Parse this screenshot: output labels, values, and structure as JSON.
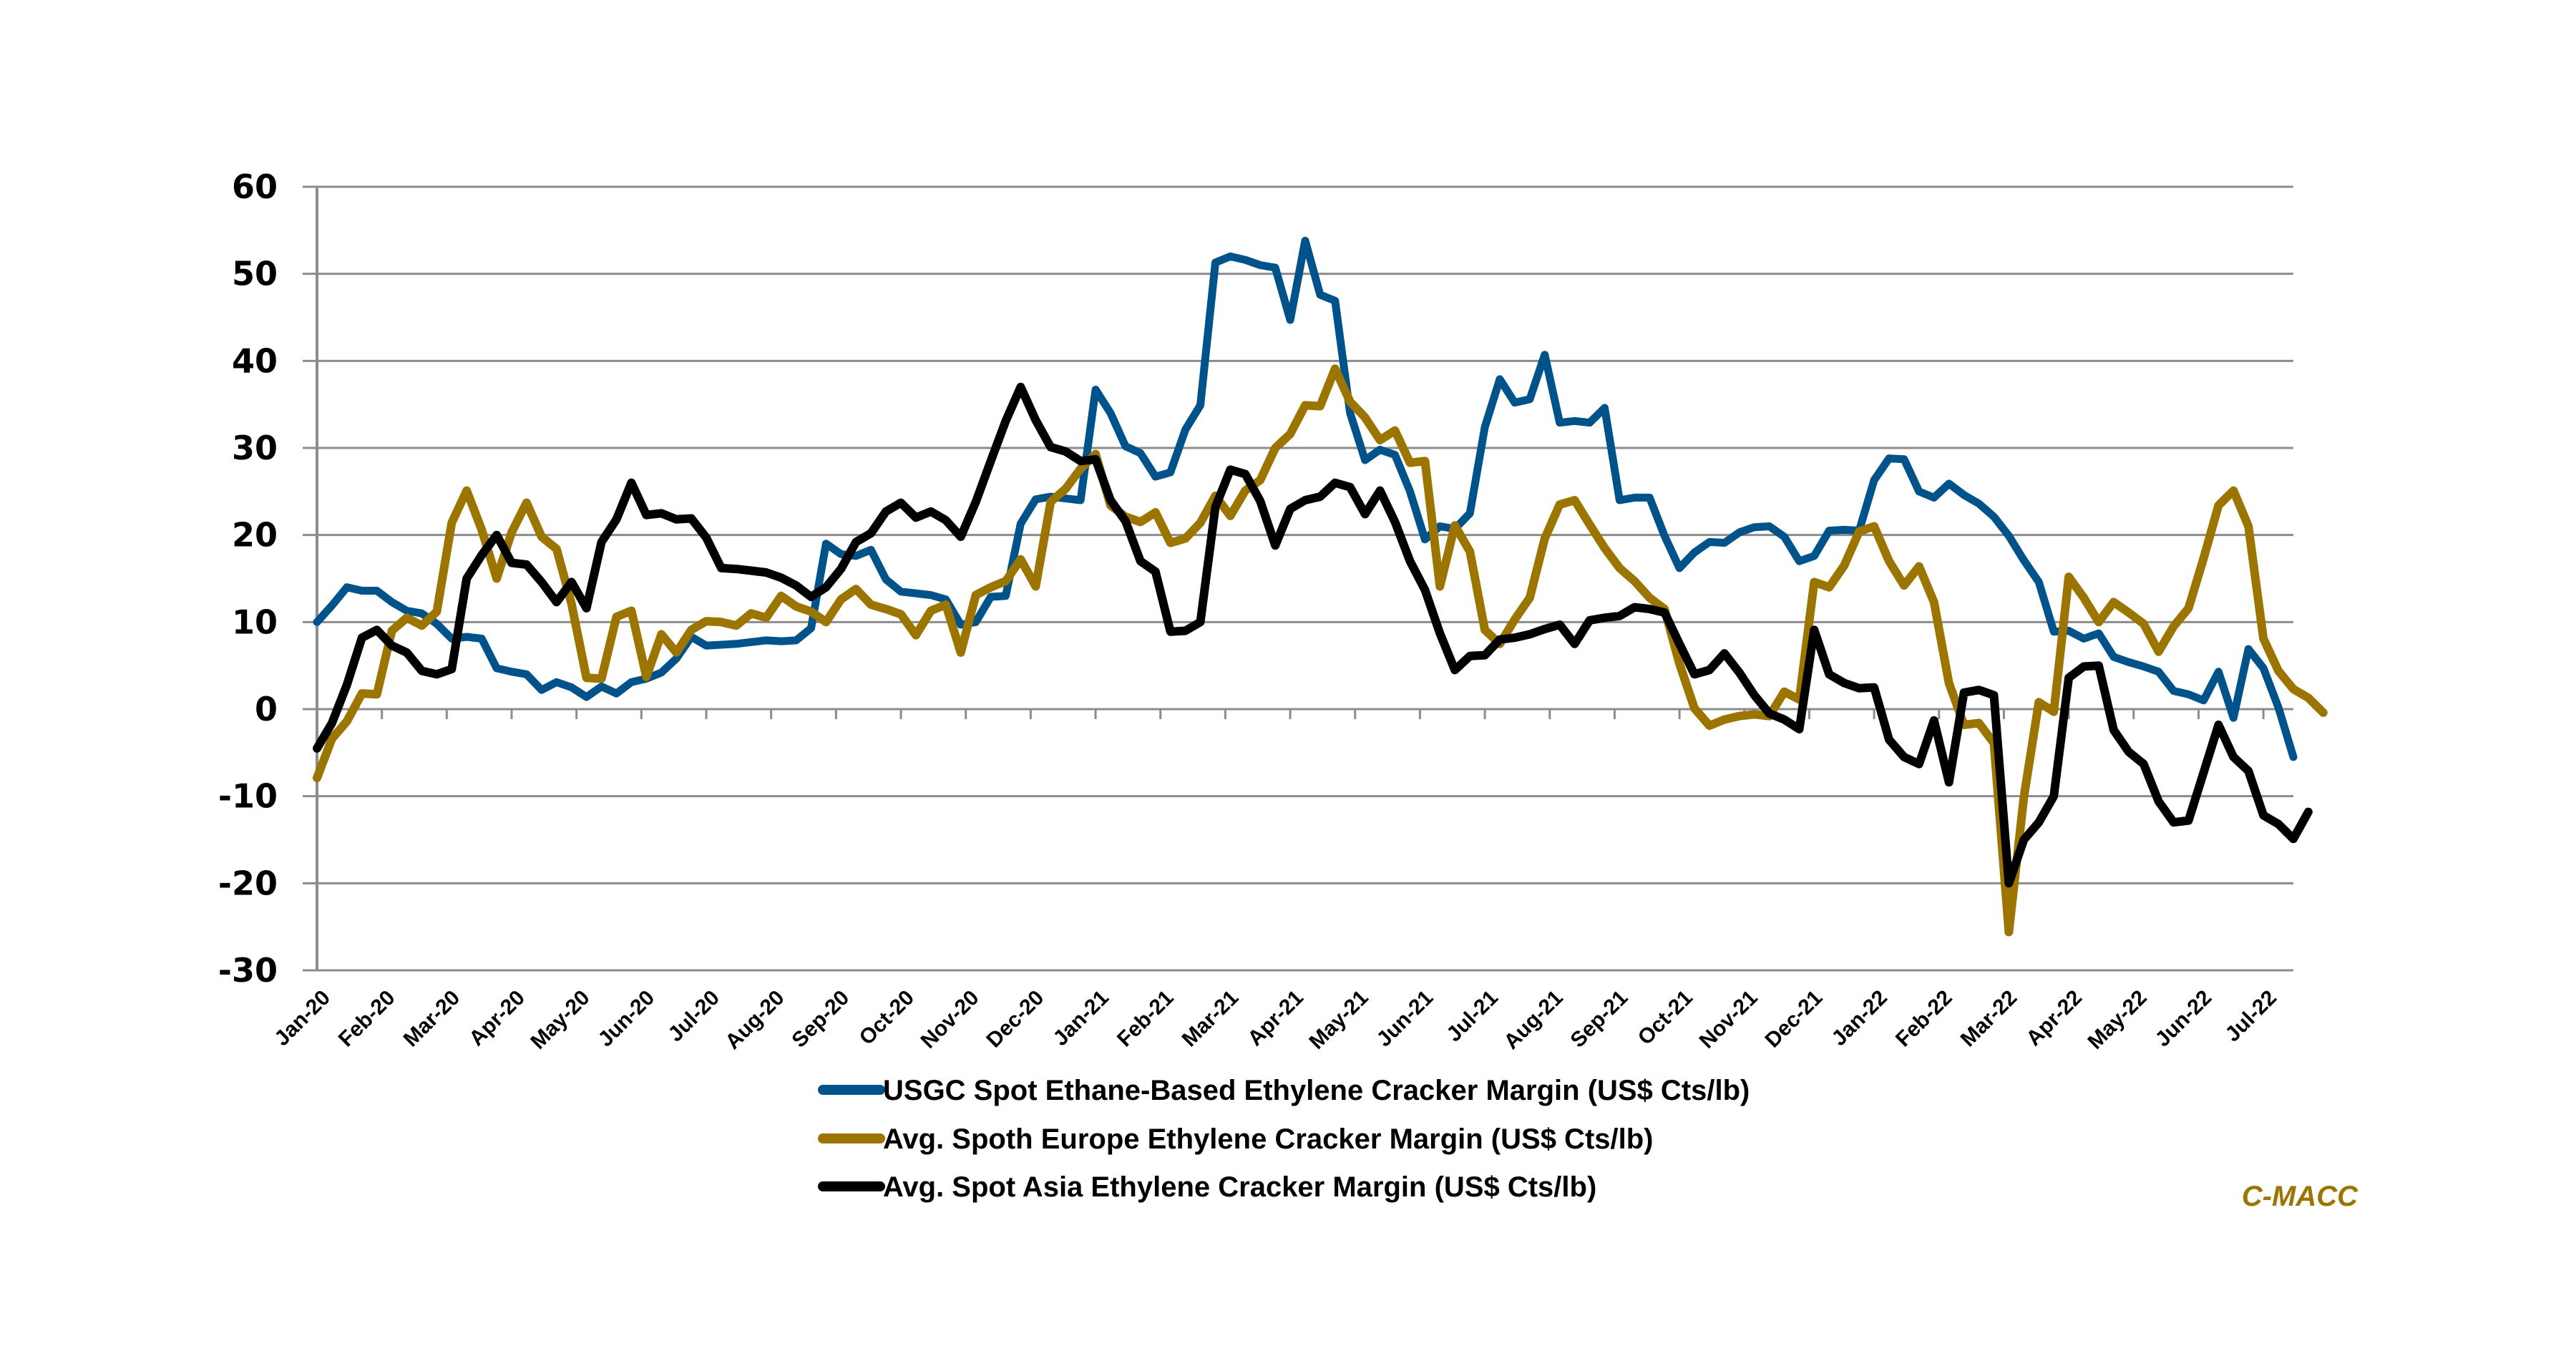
{
  "chart_data": {
    "type": "line",
    "title": "",
    "xlabel": "",
    "ylabel": "",
    "ylim": [
      -30,
      60
    ],
    "yticks": [
      60,
      50,
      40,
      30,
      20,
      10,
      0,
      -10,
      -20,
      -30
    ],
    "grid": true,
    "legend_position": "bottom-center",
    "x_frequency": "weekly",
    "x_tick_labels": [
      "Jan-20",
      "Feb-20",
      "Mar-20",
      "Apr-20",
      "May-20",
      "Jun-20",
      "Jul-20",
      "Aug-20",
      "Sep-20",
      "Oct-20",
      "Nov-20",
      "Dec-20",
      "Jan-21",
      "Feb-21",
      "Mar-21",
      "Apr-21",
      "May-21",
      "Jun-21",
      "Jul-21",
      "Aug-21",
      "Sep-21",
      "Oct-21",
      "Nov-21",
      "Dec-21",
      "Jan-22",
      "Feb-22",
      "Mar-22",
      "Apr-22",
      "May-22",
      "Jun-22",
      "Jul-22"
    ],
    "series": [
      {
        "name": "USGC Spot Ethane-Based Ethylene Cracker Margin (US$ Cts/lb)",
        "color": "#00538A",
        "values": [
          10.0,
          11.9,
          14.0,
          13.6,
          13.6,
          12.3,
          11.3,
          11.0,
          9.8,
          8.1,
          8.3,
          8.1,
          4.7,
          4.3,
          4.0,
          2.2,
          3.1,
          2.5,
          1.4,
          2.6,
          1.8,
          3.1,
          3.5,
          4.2,
          5.8,
          8.3,
          7.3,
          7.4,
          7.5,
          7.7,
          7.9,
          7.8,
          7.9,
          9.3,
          19.0,
          17.8,
          17.6,
          18.3,
          14.9,
          13.5,
          13.3,
          13.1,
          12.6,
          9.7,
          10.0,
          12.9,
          13.0,
          21.3,
          24.1,
          24.4,
          24.2,
          24.0,
          36.7,
          34.0,
          30.2,
          29.4,
          26.7,
          27.2,
          32.1,
          34.9,
          51.3,
          52.0,
          51.6,
          51.0,
          50.7,
          44.7,
          53.8,
          47.6,
          46.9,
          34.0,
          28.6,
          29.8,
          29.2,
          25.0,
          19.5,
          21.0,
          20.7,
          22.5,
          32.4,
          37.9,
          35.2,
          35.6,
          40.7,
          32.9,
          33.1,
          32.9,
          34.6,
          24.0,
          24.3,
          24.3,
          19.9,
          16.2,
          18.0,
          19.2,
          19.1,
          20.3,
          20.9,
          21.0,
          19.8,
          17.0,
          17.6,
          20.5,
          20.6,
          20.5,
          26.3,
          28.8,
          28.7,
          25.0,
          24.3,
          25.9,
          24.6,
          23.6,
          22.1,
          19.9,
          17.1,
          14.6,
          8.9,
          9.0,
          8.1,
          8.7,
          6.0,
          5.4,
          4.9,
          4.3,
          2.1,
          1.7,
          1.0,
          4.3,
          -1.0,
          6.9,
          4.7,
          0.2,
          -5.5
        ]
      },
      {
        "name": "Avg. Spoth Europe Ethylene Cracker Margin (US$ Cts/lb)",
        "color": "#9C7400",
        "values": [
          -7.9,
          -3.4,
          -1.4,
          1.8,
          1.7,
          9.0,
          10.5,
          9.6,
          11.2,
          21.4,
          25.1,
          20.6,
          15.0,
          20.3,
          23.7,
          19.8,
          18.4,
          12.1,
          3.6,
          3.5,
          10.6,
          11.3,
          3.7,
          8.6,
          6.5,
          9.1,
          10.1,
          10.0,
          9.6,
          11.0,
          10.5,
          13.0,
          11.8,
          11.2,
          10.0,
          12.6,
          13.8,
          12.0,
          11.5,
          10.9,
          8.5,
          11.3,
          12.0,
          6.5,
          13.1,
          14.0,
          14.7,
          17.2,
          14.1,
          23.8,
          25.3,
          27.6,
          29.3,
          23.4,
          22.1,
          21.5,
          22.6,
          19.1,
          19.6,
          21.4,
          24.5,
          22.2,
          25.1,
          26.3,
          30.0,
          31.6,
          34.9,
          34.8,
          39.1,
          35.3,
          33.5,
          30.9,
          32.0,
          28.3,
          28.5,
          14.1,
          21.1,
          18.1,
          9.1,
          7.5,
          10.3,
          12.8,
          19.6,
          23.5,
          24.0,
          21.2,
          18.5,
          16.2,
          14.7,
          12.8,
          11.5,
          5.2,
          0.1,
          -1.9,
          -1.2,
          -0.8,
          -0.6,
          -0.8,
          2.0,
          1.1,
          14.6,
          14.0,
          16.5,
          20.4,
          21.0,
          17.0,
          14.2,
          16.4,
          12.3,
          3.0,
          -1.8,
          -1.6,
          -3.9,
          -25.6,
          -10.1,
          0.8,
          -0.3,
          15.2,
          12.8,
          10.0,
          12.3,
          11.1,
          9.8,
          6.6,
          9.5,
          11.6,
          17.3,
          23.4,
          25.1,
          21.0,
          8.1,
          4.4,
          2.3,
          1.3,
          -0.4
        ]
      },
      {
        "name": "Avg. Spot Asia Ethylene Cracker Margin (US$ Cts/lb)",
        "color": "#000000",
        "values": [
          -4.5,
          -1.6,
          2.8,
          8.2,
          9.1,
          7.3,
          6.5,
          4.4,
          4.0,
          4.6,
          15.0,
          17.7,
          20.0,
          16.8,
          16.6,
          14.6,
          12.3,
          14.6,
          11.6,
          19.2,
          21.8,
          26.0,
          22.3,
          22.5,
          21.8,
          21.9,
          19.7,
          16.2,
          16.1,
          15.9,
          15.7,
          15.1,
          14.2,
          12.9,
          14.0,
          16.1,
          19.2,
          20.2,
          22.7,
          23.7,
          22.0,
          22.7,
          21.7,
          19.8,
          23.8,
          28.5,
          33.1,
          37.0,
          33.2,
          30.1,
          29.6,
          28.5,
          28.7,
          24.0,
          21.6,
          17.0,
          15.8,
          8.9,
          9.0,
          10.0,
          23.2,
          27.5,
          27.0,
          23.9,
          18.8,
          23.0,
          24.0,
          24.4,
          26.0,
          25.5,
          22.4,
          25.1,
          21.5,
          17.0,
          13.7,
          8.7,
          4.5,
          6.1,
          6.2,
          8.0,
          8.2,
          8.6,
          9.2,
          9.7,
          7.5,
          10.2,
          10.5,
          10.7,
          11.7,
          11.5,
          11.1,
          7.5,
          4.0,
          4.5,
          6.4,
          4.2,
          1.6,
          -0.5,
          -1.2,
          -2.3,
          9.1,
          4.0,
          3.0,
          2.4,
          2.5,
          -3.5,
          -5.5,
          -6.3,
          -1.3,
          -8.4,
          1.9,
          2.2,
          1.6,
          -20.0,
          -15.0,
          -13.0,
          -10.0,
          3.6,
          4.9,
          5.0,
          -2.4,
          -4.9,
          -6.3,
          -10.6,
          -13.0,
          -12.8,
          -7.3,
          -1.8,
          -5.5,
          -7.1,
          -12.2,
          -13.2,
          -14.9,
          -11.8
        ]
      }
    ],
    "source_note": "C-MACC"
  }
}
